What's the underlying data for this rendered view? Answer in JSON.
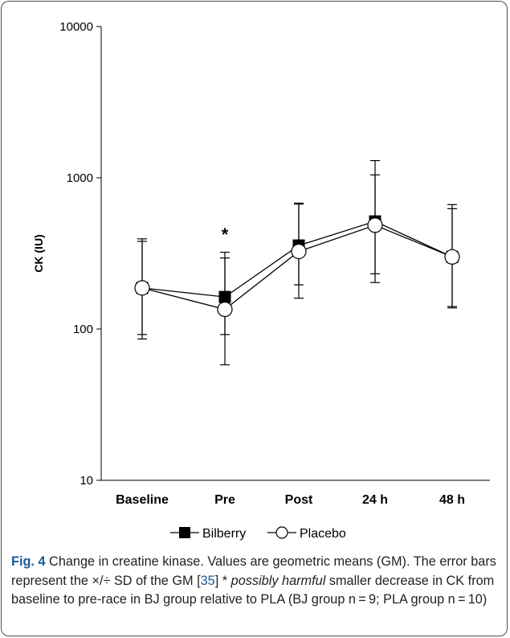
{
  "chart_data": {
    "type": "line",
    "categories": [
      "Baseline",
      "Pre",
      "Post",
      "24 h",
      "48 h"
    ],
    "ylabel": "CK (IU)",
    "yscale": "log",
    "ylim": [
      10,
      10000
    ],
    "yticks": [
      "10",
      "100",
      "1000",
      "10000"
    ],
    "grid": false,
    "legend_position": "bottom",
    "series": [
      {
        "name": "Bilberry",
        "marker": "filled-square",
        "values": [
          187,
          163,
          357,
          515,
          300
        ],
        "error_upper": [
          395,
          322,
          680,
          1300,
          665
        ],
        "error_lower": [
          86,
          92,
          160,
          203,
          141
        ]
      },
      {
        "name": "Placebo",
        "marker": "open-circle",
        "values": [
          187,
          135,
          326,
          486,
          300
        ],
        "error_upper": [
          380,
          295,
          670,
          1045,
          625
        ],
        "error_lower": [
          92,
          58,
          196,
          232,
          138
        ]
      }
    ],
    "annotations": [
      {
        "text": "*",
        "category": "Pre"
      }
    ],
    "colors": {
      "line": "#000000",
      "marker_fill": "#000000",
      "open_marker_fill": "#ffffff"
    }
  },
  "caption": {
    "fig_label": "Fig. 4",
    "part1": " Change in creatine kinase. Values are geometric means (GM). The error bars represent the ×/÷ SD of the GM [",
    "ref": "35",
    "part2": "] * ",
    "italic": "possibly harmful",
    "part3": " smaller decrease in CK from baseline to pre-race in BJ group relative to PLA (BJ group n = 9; PLA group n = 10)"
  }
}
